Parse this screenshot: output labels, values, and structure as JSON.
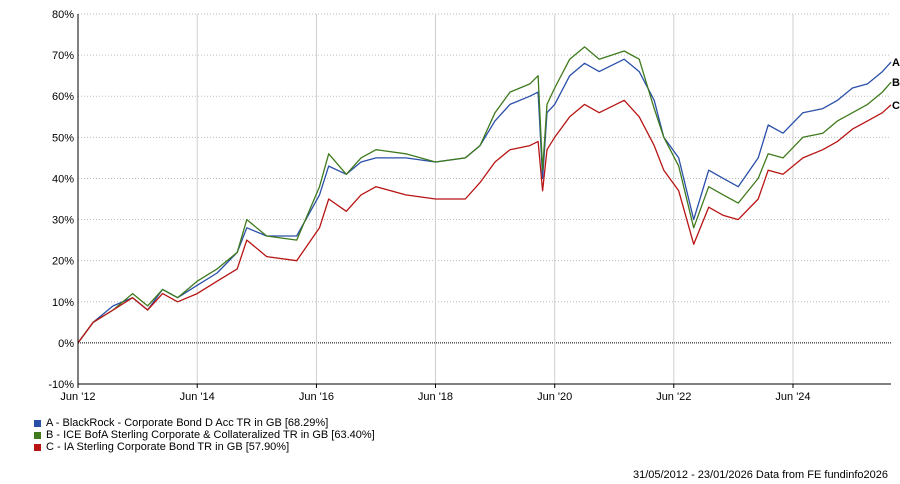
{
  "chart_data": {
    "type": "line",
    "x_ticks": [
      "Jun '12",
      "Jun '14",
      "Jun '16",
      "Jun '18",
      "Jun '20",
      "Jun '22",
      "Jun '24"
    ],
    "y_ticks": [
      "80%",
      "70%",
      "60%",
      "50%",
      "40%",
      "30%",
      "20%",
      "10%",
      "0%",
      "-10%"
    ],
    "ylim": [
      -10,
      80
    ],
    "xlim": [
      "2012-05-31",
      "2026-01-23"
    ],
    "grid": true,
    "legend_position": "bottom-left",
    "series": [
      {
        "name": "A - BlackRock - Corporate Bond D Acc TR in GB [68.29%]",
        "end_label": "A",
        "color": "#2a4fa8",
        "points": [
          [
            "2012-05-31",
            0
          ],
          [
            "2012-09-01",
            5
          ],
          [
            "2013-01-01",
            9
          ],
          [
            "2013-05-01",
            11
          ],
          [
            "2013-08-01",
            8
          ],
          [
            "2013-11-01",
            13
          ],
          [
            "2014-02-01",
            11
          ],
          [
            "2014-06-01",
            14
          ],
          [
            "2014-10-01",
            17
          ],
          [
            "2015-02-01",
            22
          ],
          [
            "2015-04-01",
            28
          ],
          [
            "2015-08-01",
            26
          ],
          [
            "2016-02-01",
            26
          ],
          [
            "2016-06-20",
            36
          ],
          [
            "2016-08-15",
            43
          ],
          [
            "2016-12-01",
            41
          ],
          [
            "2017-03-01",
            44
          ],
          [
            "2017-06-01",
            45
          ],
          [
            "2017-12-01",
            45
          ],
          [
            "2018-06-01",
            44
          ],
          [
            "2018-12-01",
            45
          ],
          [
            "2019-03-01",
            48
          ],
          [
            "2019-06-01",
            54
          ],
          [
            "2019-09-01",
            58
          ],
          [
            "2020-01-01",
            60
          ],
          [
            "2020-02-20",
            61
          ],
          [
            "2020-03-19",
            40
          ],
          [
            "2020-04-15",
            56
          ],
          [
            "2020-06-01",
            58
          ],
          [
            "2020-09-01",
            65
          ],
          [
            "2020-12-01",
            68
          ],
          [
            "2021-03-01",
            66
          ],
          [
            "2021-08-01",
            69
          ],
          [
            "2021-11-01",
            66
          ],
          [
            "2022-02-01",
            59
          ],
          [
            "2022-04-01",
            50
          ],
          [
            "2022-07-01",
            45
          ],
          [
            "2022-10-01",
            30
          ],
          [
            "2023-01-01",
            42
          ],
          [
            "2023-04-01",
            40
          ],
          [
            "2023-07-01",
            38
          ],
          [
            "2023-11-01",
            45
          ],
          [
            "2024-01-01",
            53
          ],
          [
            "2024-04-01",
            51
          ],
          [
            "2024-08-01",
            56
          ],
          [
            "2024-12-01",
            57
          ],
          [
            "2025-03-01",
            59
          ],
          [
            "2025-06-01",
            62
          ],
          [
            "2025-09-01",
            63
          ],
          [
            "2025-12-01",
            66
          ],
          [
            "2026-01-23",
            68.29
          ]
        ]
      },
      {
        "name": "B - ICE BofA Sterling Corporate & Collateralized TR in GB [63.40%]",
        "end_label": "B",
        "color": "#3f7a1c",
        "points": [
          [
            "2012-05-31",
            0
          ],
          [
            "2012-09-01",
            5
          ],
          [
            "2013-01-01",
            8
          ],
          [
            "2013-05-01",
            12
          ],
          [
            "2013-08-01",
            9
          ],
          [
            "2013-11-01",
            13
          ],
          [
            "2014-02-01",
            11
          ],
          [
            "2014-06-01",
            15
          ],
          [
            "2014-10-01",
            18
          ],
          [
            "2015-02-01",
            22
          ],
          [
            "2015-04-01",
            30
          ],
          [
            "2015-08-01",
            26
          ],
          [
            "2016-02-01",
            25
          ],
          [
            "2016-06-20",
            38
          ],
          [
            "2016-08-15",
            46
          ],
          [
            "2016-12-01",
            41
          ],
          [
            "2017-03-01",
            45
          ],
          [
            "2017-06-01",
            47
          ],
          [
            "2017-12-01",
            46
          ],
          [
            "2018-06-01",
            44
          ],
          [
            "2018-12-01",
            45
          ],
          [
            "2019-03-01",
            48
          ],
          [
            "2019-06-01",
            56
          ],
          [
            "2019-09-01",
            61
          ],
          [
            "2020-01-01",
            63
          ],
          [
            "2020-02-20",
            65
          ],
          [
            "2020-03-19",
            42
          ],
          [
            "2020-04-15",
            58
          ],
          [
            "2020-06-01",
            62
          ],
          [
            "2020-09-01",
            69
          ],
          [
            "2020-12-01",
            72
          ],
          [
            "2021-03-01",
            69
          ],
          [
            "2021-08-01",
            71
          ],
          [
            "2021-11-01",
            69
          ],
          [
            "2022-02-01",
            57
          ],
          [
            "2022-04-01",
            50
          ],
          [
            "2022-07-01",
            43
          ],
          [
            "2022-10-01",
            28
          ],
          [
            "2023-01-01",
            38
          ],
          [
            "2023-04-01",
            36
          ],
          [
            "2023-07-01",
            34
          ],
          [
            "2023-11-01",
            40
          ],
          [
            "2024-01-01",
            46
          ],
          [
            "2024-04-01",
            45
          ],
          [
            "2024-08-01",
            50
          ],
          [
            "2024-12-01",
            51
          ],
          [
            "2025-03-01",
            54
          ],
          [
            "2025-06-01",
            56
          ],
          [
            "2025-09-01",
            58
          ],
          [
            "2025-12-01",
            61
          ],
          [
            "2026-01-23",
            63.4
          ]
        ]
      },
      {
        "name": "C - IA Sterling Corporate Bond TR in GB [57.90%]",
        "end_label": "C",
        "color": "#b81414",
        "points": [
          [
            "2012-05-31",
            0
          ],
          [
            "2012-09-01",
            5
          ],
          [
            "2013-01-01",
            8
          ],
          [
            "2013-05-01",
            11
          ],
          [
            "2013-08-01",
            8
          ],
          [
            "2013-11-01",
            12
          ],
          [
            "2014-02-01",
            10
          ],
          [
            "2014-06-01",
            12
          ],
          [
            "2014-10-01",
            15
          ],
          [
            "2015-02-01",
            18
          ],
          [
            "2015-04-01",
            25
          ],
          [
            "2015-08-01",
            21
          ],
          [
            "2016-02-01",
            20
          ],
          [
            "2016-06-20",
            28
          ],
          [
            "2016-08-15",
            35
          ],
          [
            "2016-12-01",
            32
          ],
          [
            "2017-03-01",
            36
          ],
          [
            "2017-06-01",
            38
          ],
          [
            "2017-12-01",
            36
          ],
          [
            "2018-06-01",
            35
          ],
          [
            "2018-12-01",
            35
          ],
          [
            "2019-03-01",
            39
          ],
          [
            "2019-06-01",
            44
          ],
          [
            "2019-09-01",
            47
          ],
          [
            "2020-01-01",
            48
          ],
          [
            "2020-02-20",
            49
          ],
          [
            "2020-03-19",
            37
          ],
          [
            "2020-04-15",
            47
          ],
          [
            "2020-06-01",
            50
          ],
          [
            "2020-09-01",
            55
          ],
          [
            "2020-12-01",
            58
          ],
          [
            "2021-03-01",
            56
          ],
          [
            "2021-08-01",
            59
          ],
          [
            "2021-11-01",
            55
          ],
          [
            "2022-02-01",
            48
          ],
          [
            "2022-04-01",
            42
          ],
          [
            "2022-07-01",
            37
          ],
          [
            "2022-10-01",
            24
          ],
          [
            "2023-01-01",
            33
          ],
          [
            "2023-04-01",
            31
          ],
          [
            "2023-07-01",
            30
          ],
          [
            "2023-11-01",
            35
          ],
          [
            "2024-01-01",
            42
          ],
          [
            "2024-04-01",
            41
          ],
          [
            "2024-08-01",
            45
          ],
          [
            "2024-12-01",
            47
          ],
          [
            "2025-03-01",
            49
          ],
          [
            "2025-06-01",
            52
          ],
          [
            "2025-09-01",
            54
          ],
          [
            "2025-12-01",
            56
          ],
          [
            "2026-01-23",
            57.9
          ]
        ]
      }
    ]
  },
  "footer": {
    "date_range": "31/05/2012 - 23/01/2026",
    "source": "Data from FE fundinfo2026"
  }
}
